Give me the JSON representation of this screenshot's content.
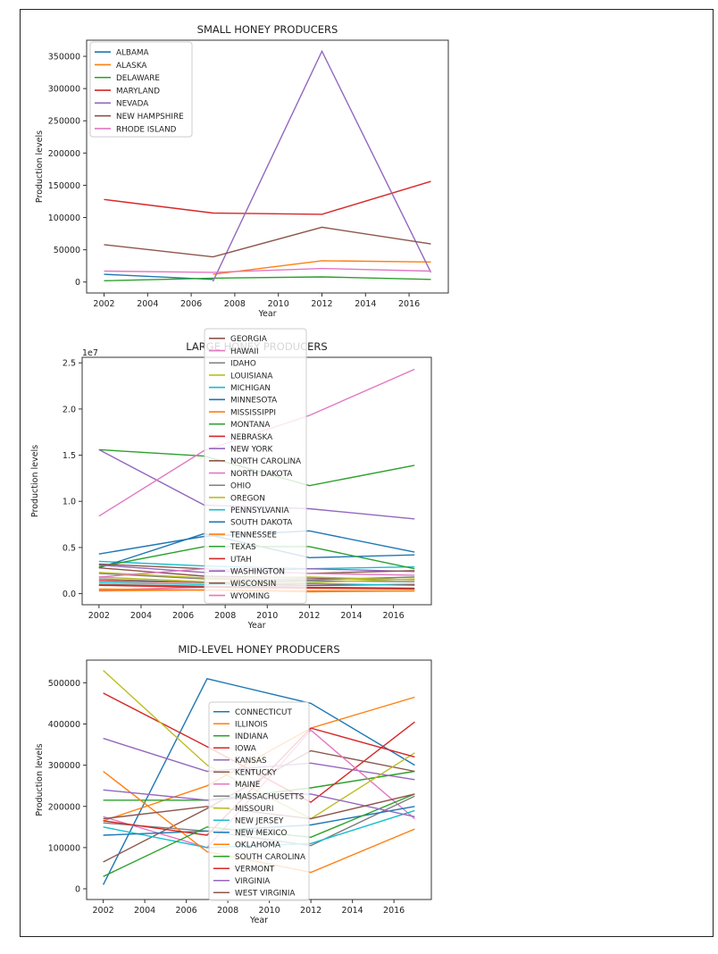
{
  "chart_data": [
    {
      "type": "line",
      "title": "SMALL HONEY PRODUCERS",
      "xlabel": "Year",
      "ylabel": "Production levels",
      "xlim": [
        2001.2,
        2017.8
      ],
      "ylim": [
        -17000,
        375000
      ],
      "xticks": [
        2002,
        2004,
        2006,
        2008,
        2010,
        2012,
        2014,
        2016
      ],
      "xtick_labels": [
        "2002",
        "2004",
        "2006",
        "2008",
        "2010",
        "2012",
        "2014",
        "2016"
      ],
      "yticks": [
        0,
        50000,
        100000,
        150000,
        200000,
        250000,
        300000,
        350000
      ],
      "ytick_labels": [
        "0",
        "50000",
        "100000",
        "150000",
        "200000",
        "250000",
        "300000",
        "350000"
      ],
      "exponent_label": "",
      "legend_position": "top-left",
      "series": [
        {
          "name": "ALBAMA",
          "color": "#1f77b4",
          "x": [
            2002,
            2007
          ],
          "y": [
            12000,
            4000
          ]
        },
        {
          "name": "ALASKA",
          "color": "#ff7f0e",
          "x": [
            2007,
            2012,
            2017
          ],
          "y": [
            12000,
            33000,
            31000
          ]
        },
        {
          "name": "DELAWARE",
          "color": "#2ca02c",
          "x": [
            2002,
            2007,
            2012,
            2017
          ],
          "y": [
            2000,
            6000,
            8000,
            4000
          ]
        },
        {
          "name": "MARYLAND",
          "color": "#d62728",
          "x": [
            2002,
            2007,
            2012,
            2017
          ],
          "y": [
            128000,
            107000,
            105000,
            156000
          ]
        },
        {
          "name": "NEVADA",
          "color": "#9467bd",
          "x": [
            2007,
            2012,
            2017
          ],
          "y": [
            1000,
            358000,
            15000
          ]
        },
        {
          "name": "NEW HAMPSHIRE",
          "color": "#8c564b",
          "x": [
            2002,
            2007,
            2012,
            2017
          ],
          "y": [
            58000,
            39000,
            85000,
            59000
          ]
        },
        {
          "name": "RHODE ISLAND",
          "color": "#e377c2",
          "x": [
            2002,
            2007,
            2012,
            2017
          ],
          "y": [
            17000,
            15000,
            21000,
            17000
          ]
        }
      ]
    },
    {
      "type": "line",
      "title": "LARGE HONEY PRODUCERS",
      "xlabel": "Year",
      "ylabel": "Production levels",
      "xlim": [
        2001.2,
        2017.8
      ],
      "ylim": [
        -1200000,
        25600000
      ],
      "xticks": [
        2002,
        2004,
        2006,
        2008,
        2010,
        2012,
        2014,
        2016
      ],
      "xtick_labels": [
        "2002",
        "2004",
        "2006",
        "2008",
        "2010",
        "2012",
        "2014",
        "2016"
      ],
      "yticks": [
        0,
        5000000,
        10000000,
        15000000,
        20000000,
        25000000
      ],
      "ytick_labels": [
        "0.0",
        "0.5",
        "1.0",
        "1.5",
        "2.0",
        "2.5"
      ],
      "exponent_label": "1e7",
      "legend_position": "upper center",
      "series": [
        {
          "name": "GEORGIA",
          "color": "#8c564b",
          "x": [
            2002,
            2007,
            2012,
            2017
          ],
          "y": [
            2800000,
            1900000,
            1700000,
            1500000
          ]
        },
        {
          "name": "HAWAII",
          "color": "#e377c2",
          "x": [
            2002,
            2007,
            2012,
            2017
          ],
          "y": [
            400000,
            700000,
            900000,
            1000000
          ]
        },
        {
          "name": "IDAHO",
          "color": "#7f7f7f",
          "x": [
            2002,
            2007,
            2012,
            2017
          ],
          "y": [
            2200000,
            1600000,
            1500000,
            1800000
          ]
        },
        {
          "name": "LOUISIANA",
          "color": "#bcbd22",
          "x": [
            2002,
            2007,
            2012,
            2017
          ],
          "y": [
            2300000,
            1700000,
            1800000,
            1500000
          ]
        },
        {
          "name": "MICHIGAN",
          "color": "#17becf",
          "x": [
            2002,
            2007,
            2012,
            2017
          ],
          "y": [
            3500000,
            3000000,
            2700000,
            2900000
          ]
        },
        {
          "name": "MINNESOTA",
          "color": "#1f77b4",
          "x": [
            2002,
            2007,
            2012,
            2017
          ],
          "y": [
            4300000,
            6200000,
            6800000,
            4500000
          ]
        },
        {
          "name": "MISSISSIPPI",
          "color": "#ff7f0e",
          "x": [
            2002,
            2007,
            2012,
            2017
          ],
          "y": [
            300000,
            400000,
            200000,
            300000
          ]
        },
        {
          "name": "MONTANA",
          "color": "#2ca02c",
          "x": [
            2002,
            2007,
            2012,
            2017
          ],
          "y": [
            15600000,
            14900000,
            11700000,
            13900000
          ]
        },
        {
          "name": "NEBRASKA",
          "color": "#d62728",
          "x": [
            2002,
            2007,
            2012,
            2017
          ],
          "y": [
            1400000,
            1200000,
            900000,
            1000000
          ]
        },
        {
          "name": "NEW YORK",
          "color": "#9467bd",
          "x": [
            2002,
            2007,
            2012,
            2017
          ],
          "y": [
            15600000,
            9600000,
            9200000,
            8100000
          ]
        },
        {
          "name": "NORTH CAROLINA",
          "color": "#8c564b",
          "x": [
            2002,
            2007,
            2012,
            2017
          ],
          "y": [
            1000000,
            800000,
            700000,
            600000
          ]
        },
        {
          "name": "NORTH DAKOTA",
          "color": "#e377c2",
          "x": [
            2002,
            2007,
            2012,
            2017
          ],
          "y": [
            8400000,
            15500000,
            19300000,
            24300000
          ]
        },
        {
          "name": "OHIO",
          "color": "#7f7f7f",
          "x": [
            2002,
            2007,
            2012,
            2017
          ],
          "y": [
            1600000,
            1200000,
            1400000,
            1300000
          ]
        },
        {
          "name": "OREGON",
          "color": "#bcbd22",
          "x": [
            2002,
            2007,
            2012,
            2017
          ],
          "y": [
            1800000,
            1300000,
            1200000,
            1600000
          ]
        },
        {
          "name": "PENNSYLVANIA",
          "color": "#17becf",
          "x": [
            2002,
            2007,
            2012,
            2017
          ],
          "y": [
            1200000,
            1000000,
            1100000,
            900000
          ]
        },
        {
          "name": "SOUTH DAKOTA",
          "color": "#1f77b4",
          "x": [
            2002,
            2007,
            2012,
            2017
          ],
          "y": [
            2800000,
            6500000,
            3900000,
            4200000
          ]
        },
        {
          "name": "TENNESSEE",
          "color": "#ff7f0e",
          "x": [
            2002,
            2007,
            2012,
            2017
          ],
          "y": [
            500000,
            400000,
            300000,
            300000
          ]
        },
        {
          "name": "TEXAS",
          "color": "#2ca02c",
          "x": [
            2002,
            2007,
            2012,
            2017
          ],
          "y": [
            2900000,
            5100000,
            5100000,
            2700000
          ]
        },
        {
          "name": "UTAH",
          "color": "#d62728",
          "x": [
            2002,
            2007,
            2012,
            2017
          ],
          "y": [
            900000,
            700000,
            600000,
            500000
          ]
        },
        {
          "name": "WASHINGTON",
          "color": "#9467bd",
          "x": [
            2002,
            2007,
            2012,
            2017
          ],
          "y": [
            3100000,
            2300000,
            2700000,
            2400000
          ]
        },
        {
          "name": "WISCONSIN",
          "color": "#8c564b",
          "x": [
            2002,
            2007,
            2012,
            2017
          ],
          "y": [
            3200000,
            2700000,
            2200000,
            2500000
          ]
        },
        {
          "name": "WYOMING",
          "color": "#e377c2",
          "x": [
            2002,
            2007,
            2012,
            2017
          ],
          "y": [
            1800000,
            2700000,
            2200000,
            2000000
          ]
        }
      ]
    },
    {
      "type": "line",
      "title": "MID-LEVEL HONEY PRODUCERS",
      "xlabel": "Year",
      "ylabel": "Production levels",
      "xlim": [
        2001.2,
        2017.8
      ],
      "ylim": [
        -26000,
        555000
      ],
      "xticks": [
        2002,
        2004,
        2006,
        2008,
        2010,
        2012,
        2014,
        2016
      ],
      "xtick_labels": [
        "2002",
        "2004",
        "2006",
        "2008",
        "2010",
        "2012",
        "2014",
        "2016"
      ],
      "yticks": [
        0,
        100000,
        200000,
        300000,
        400000,
        500000
      ],
      "ytick_labels": [
        "0",
        "100000",
        "200000",
        "300000",
        "400000",
        "500000"
      ],
      "exponent_label": "",
      "legend_position": "center",
      "series": [
        {
          "name": "CONNECTICUT",
          "color": "#1f77b4",
          "x": [
            2002,
            2007,
            2012,
            2017
          ],
          "y": [
            10000,
            510000,
            450000,
            300000
          ]
        },
        {
          "name": "ILLINOIS",
          "color": "#ff7f0e",
          "x": [
            2002,
            2007,
            2012,
            2017
          ],
          "y": [
            165000,
            250000,
            390000,
            465000
          ]
        },
        {
          "name": "INDIANA",
          "color": "#2ca02c",
          "x": [
            2002,
            2007,
            2012,
            2017
          ],
          "y": [
            215000,
            215000,
            245000,
            285000
          ]
        },
        {
          "name": "IOWA",
          "color": "#d62728",
          "x": [
            2002,
            2007,
            2012,
            2017
          ],
          "y": [
            475000,
            345000,
            210000,
            405000
          ]
        },
        {
          "name": "KANSAS",
          "color": "#9467bd",
          "x": [
            2002,
            2007,
            2012,
            2017
          ],
          "y": [
            365000,
            285000,
            305000,
            265000
          ]
        },
        {
          "name": "KENTUCKY",
          "color": "#8c564b",
          "x": [
            2002,
            2007,
            2012,
            2017
          ],
          "y": [
            65000,
            195000,
            335000,
            285000
          ]
        },
        {
          "name": "MAINE",
          "color": "#e377c2",
          "x": [
            2002,
            2007,
            2012,
            2017
          ],
          "y": [
            175000,
            100000,
            385000,
            170000
          ]
        },
        {
          "name": "MASSACHUSETTS",
          "color": "#7f7f7f",
          "x": [
            2002,
            2007,
            2012,
            2017
          ],
          "y": [
            160000,
            140000,
            105000,
            225000
          ]
        },
        {
          "name": "MISSOURI",
          "color": "#bcbd22",
          "x": [
            2002,
            2007,
            2012,
            2017
          ],
          "y": [
            530000,
            300000,
            170000,
            330000
          ]
        },
        {
          "name": "NEW JERSEY",
          "color": "#17becf",
          "x": [
            2002,
            2007,
            2012,
            2017
          ],
          "y": [
            150000,
            100000,
            110000,
            190000
          ]
        },
        {
          "name": "NEW MEXICO",
          "color": "#1f77b4",
          "x": [
            2002,
            2007,
            2012,
            2017
          ],
          "y": [
            130000,
            140000,
            155000,
            200000
          ]
        },
        {
          "name": "OKLAHOMA",
          "color": "#ff7f0e",
          "x": [
            2002,
            2007,
            2012,
            2017
          ],
          "y": [
            285000,
            90000,
            40000,
            145000
          ]
        },
        {
          "name": "SOUTH CAROLINA",
          "color": "#2ca02c",
          "x": [
            2002,
            2007,
            2012,
            2017
          ],
          "y": [
            30000,
            150000,
            125000,
            230000
          ]
        },
        {
          "name": "VERMONT",
          "color": "#d62728",
          "x": [
            2002,
            2007,
            2012,
            2017
          ],
          "y": [
            165000,
            130000,
            390000,
            320000
          ]
        },
        {
          "name": "VIRGINIA",
          "color": "#9467bd",
          "x": [
            2002,
            2007,
            2012,
            2017
          ],
          "y": [
            240000,
            215000,
            230000,
            175000
          ]
        },
        {
          "name": "WEST VIRGINIA",
          "color": "#8c564b",
          "x": [
            2002,
            2007,
            2012,
            2017
          ],
          "y": [
            170000,
            200000,
            170000,
            230000
          ]
        }
      ]
    }
  ]
}
